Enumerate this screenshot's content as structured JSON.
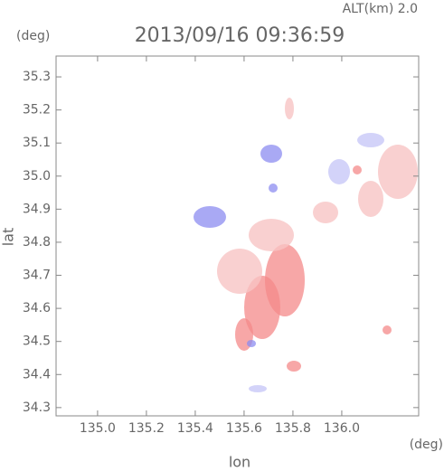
{
  "chart_data": {
    "type": "radar-map",
    "title": "2013/09/16 09:36:59",
    "annotation": "ALT(km) 2.0",
    "x_label": "lon",
    "y_label": "lat",
    "x_unit": "(deg)",
    "y_unit": "(deg)",
    "xlim": [
      134.83,
      136.315
    ],
    "ylim": [
      34.275,
      35.363
    ],
    "xticks": [
      {
        "value": 135,
        "label": "135.0"
      },
      135.2,
      135.4,
      135.6,
      135.8,
      {
        "value": 136,
        "label": "136.0"
      }
    ],
    "yticks": [
      34.3,
      34.4,
      34.5,
      34.6,
      34.7,
      34.8,
      34.9,
      {
        "value": 35,
        "label": "35.0"
      },
      35.1,
      35.2,
      35.3
    ]
  }
}
